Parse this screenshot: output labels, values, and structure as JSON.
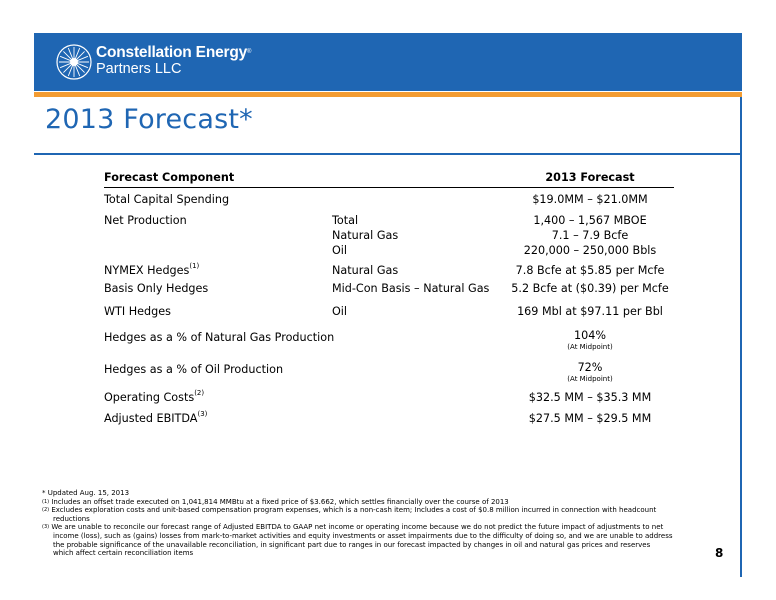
{
  "header": {
    "logo_line1": "Constellation Energy",
    "logo_mark": "®",
    "logo_line2": "Partners LLC",
    "band_color": "#1f66b3",
    "rule_color": "#f39c32"
  },
  "title": "2013 Forecast*",
  "table": {
    "col1_header": "Forecast Component",
    "col3_header": "2013 Forecast",
    "total_capital": {
      "label": "Total Capital Spending",
      "value": "$19.0MM – $21.0MM"
    },
    "net_production": {
      "label": "Net Production",
      "items": [
        {
          "sub": "Total",
          "value": "1,400 – 1,567 MBOE"
        },
        {
          "sub": "Natural Gas",
          "value": "7.1 – 7.9 Bcfe"
        },
        {
          "sub": "Oil",
          "value": "220,000 – 250,000 Bbls"
        }
      ]
    },
    "nymex": {
      "label": "NYMEX Hedges",
      "note": "(1)",
      "sub": "Natural Gas",
      "value": "7.8 Bcfe at $5.85 per Mcfe"
    },
    "basis": {
      "label": "Basis Only Hedges",
      "sub": "Mid-Con Basis – Natural Gas",
      "value": "5.2 Bcfe at ($0.39) per Mcfe"
    },
    "wti": {
      "label": "WTI Hedges",
      "sub": "Oil",
      "value": "169 Mbl at $97.11 per Bbl"
    },
    "hedge_gas": {
      "label": "Hedges as a % of Natural Gas Production",
      "value": "104%",
      "sub": "(At Midpoint)"
    },
    "hedge_oil": {
      "label": "Hedges as a % of Oil Production",
      "value": "72%",
      "sub": "(At Midpoint)"
    },
    "opcosts": {
      "label": "Operating Costs",
      "note": "(2)",
      "value": "$32.5 MM – $35.3 MM"
    },
    "ebitda": {
      "label": "Adjusted EBITDA",
      "note": "(3)",
      "value": "$27.5 MM – $29.5 MM"
    }
  },
  "footnotes": {
    "updated": "* Updated Aug. 15, 2013",
    "n1_mark": "(1)",
    "n1": "Includes an offset trade executed on 1,041,814 MMBtu at a fixed price of $3.662, which settles financially over the course of 2013",
    "n2_mark": "(2)",
    "n2a": "Excludes exploration costs and unit-based compensation program expenses, which is a non-cash item; Includes a cost of $0.8 million incurred in connection with headcount",
    "n2b": "reductions",
    "n3_mark": "(3)",
    "n3a": "We are unable to reconcile our forecast range of Adjusted EBITDA to GAAP net income or operating income because we do not predict the future impact of adjustments to net",
    "n3b": "income (loss), such as (gains) losses from mark-to-market activities and equity investments or asset impairments due to the difficulty of doing so, and we are unable to address",
    "n3c": "the probable significance of the unavailable reconciliation, in significant part due to ranges in our forecast impacted by changes in oil and natural gas prices and reserves",
    "n3d": "which affect certain reconciliation items"
  },
  "page_number": "8"
}
